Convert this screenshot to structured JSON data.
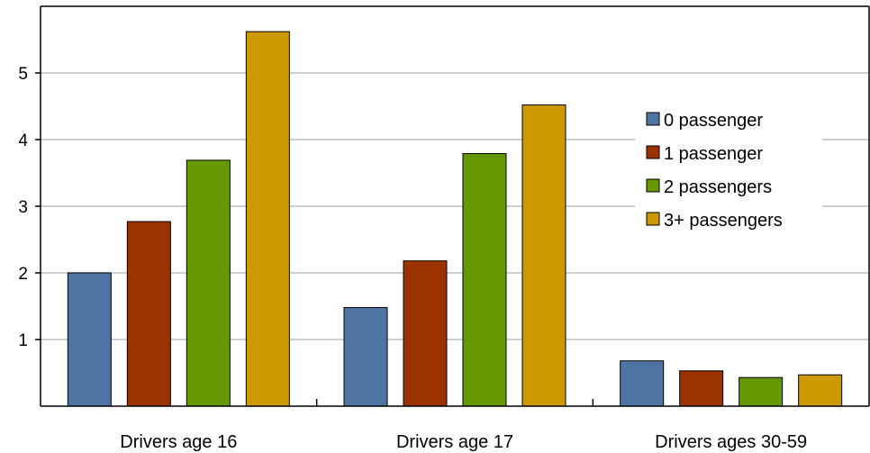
{
  "chart_data": {
    "type": "bar",
    "title": "",
    "xlabel": "",
    "ylabel": "",
    "categories": [
      "Drivers age 16",
      "Drivers age 17",
      "Drivers ages 30-59"
    ],
    "series": [
      {
        "name": "0 passenger",
        "color": "#4d74a3",
        "values": [
          2.0,
          1.48,
          0.68
        ]
      },
      {
        "name": "1 passenger",
        "color": "#9b3300",
        "values": [
          2.77,
          2.18,
          0.53
        ]
      },
      {
        "name": "2 passengers",
        "color": "#669900",
        "values": [
          3.69,
          3.79,
          0.43
        ]
      },
      {
        "name": "3+ passengers",
        "color": "#cc9900",
        "values": [
          5.62,
          4.52,
          0.47
        ]
      }
    ],
    "yticks": [
      1,
      2,
      3,
      4,
      5
    ],
    "ylim": [
      0,
      6
    ],
    "grid": true,
    "legend_position": "right"
  }
}
